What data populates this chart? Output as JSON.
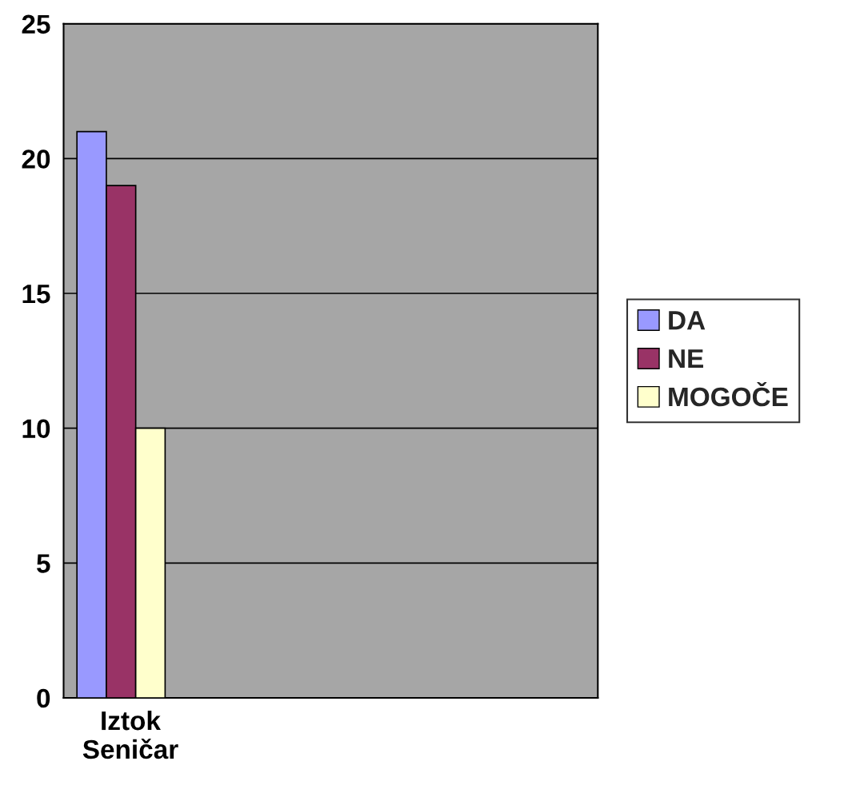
{
  "chart_data": {
    "type": "bar",
    "categories": [
      "Iztok Seničar",
      null,
      null,
      null
    ],
    "series": [
      {
        "name": "DA",
        "color": "#9999ff",
        "values": [
          21,
          null,
          null,
          null
        ]
      },
      {
        "name": "NE",
        "color": "#993366",
        "values": [
          19,
          null,
          null,
          null
        ]
      },
      {
        "name": "MOGOČE",
        "color": "#ffffcc",
        "values": [
          10,
          null,
          null,
          null
        ]
      }
    ],
    "ylim": [
      0,
      25
    ],
    "yticks": [
      0,
      5,
      10,
      15,
      20,
      25
    ],
    "grid": "y",
    "legend": "right"
  }
}
